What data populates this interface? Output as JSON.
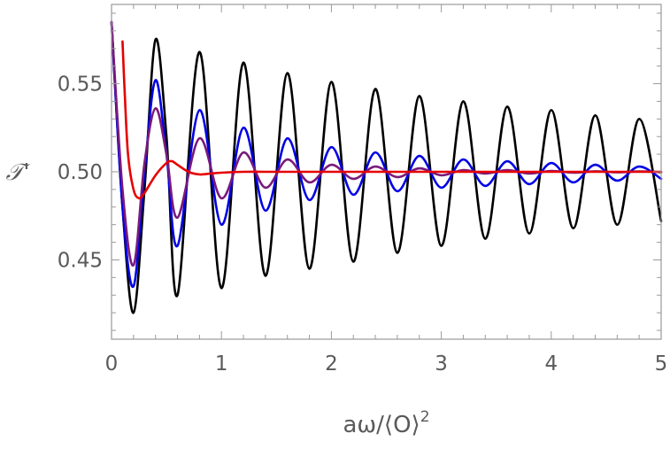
{
  "chart_data": {
    "type": "line",
    "title": "",
    "xlabel": "aω/⟨O⟩",
    "xlabel_superscript": "2",
    "ylabel": "𝒯'",
    "xlim": [
      0,
      5
    ],
    "ylim": [
      0.405,
      0.595
    ],
    "x_ticks": [
      0,
      1,
      2,
      3,
      4,
      5
    ],
    "x_tick_labels": [
      "0",
      "1",
      "2",
      "3",
      "4",
      "5"
    ],
    "y_ticks": [
      0.45,
      0.5,
      0.55
    ],
    "y_tick_labels": [
      "0.45",
      "0.50",
      "0.55"
    ],
    "grid": false,
    "legend": "none",
    "series": [
      {
        "color": "#000000",
        "x": [
          0.0,
          0.1,
          0.2,
          0.3,
          0.4,
          0.5,
          0.6,
          0.8,
          1.0,
          1.2,
          1.4,
          1.6,
          1.8,
          2.0,
          2.2,
          2.4,
          2.6,
          2.8,
          3.0,
          3.2,
          3.4,
          3.6,
          3.8,
          4.0,
          4.2,
          4.4,
          4.6,
          4.8,
          5.0
        ],
        "y": [
          0.585,
          0.48,
          0.42,
          0.49,
          0.575,
          0.52,
          0.43,
          0.568,
          0.434,
          0.562,
          0.441,
          0.556,
          0.445,
          0.551,
          0.449,
          0.547,
          0.454,
          0.543,
          0.458,
          0.54,
          0.462,
          0.537,
          0.465,
          0.535,
          0.468,
          0.532,
          0.47,
          0.53,
          0.472
        ]
      },
      {
        "color": "#0000e6",
        "x": [
          0.0,
          0.1,
          0.2,
          0.3,
          0.4,
          0.5,
          0.6,
          0.8,
          1.0,
          1.2,
          1.4,
          1.6,
          1.8,
          2.0,
          2.2,
          2.4,
          2.6,
          2.8,
          3.0,
          3.2,
          3.4,
          3.6,
          3.8,
          4.0,
          4.2,
          4.4,
          4.6,
          4.8,
          5.0
        ],
        "y": [
          0.585,
          0.48,
          0.435,
          0.5,
          0.552,
          0.51,
          0.458,
          0.535,
          0.47,
          0.525,
          0.478,
          0.519,
          0.484,
          0.514,
          0.487,
          0.511,
          0.489,
          0.509,
          0.491,
          0.507,
          0.492,
          0.506,
          0.493,
          0.505,
          0.494,
          0.504,
          0.495,
          0.503,
          0.496
        ]
      },
      {
        "color": "#7a1a7a",
        "x": [
          0.0,
          0.1,
          0.2,
          0.3,
          0.4,
          0.5,
          0.6,
          0.8,
          1.0,
          1.2,
          1.4,
          1.6,
          1.8,
          2.0,
          2.2,
          2.4,
          2.6,
          2.8,
          3.0,
          3.2,
          3.4,
          3.6,
          3.8,
          4.0,
          4.2,
          4.4,
          4.6,
          4.8,
          5.0
        ],
        "y": [
          0.585,
          0.49,
          0.447,
          0.505,
          0.536,
          0.51,
          0.474,
          0.519,
          0.485,
          0.511,
          0.491,
          0.507,
          0.494,
          0.504,
          0.496,
          0.503,
          0.497,
          0.502,
          0.498,
          0.501,
          0.499,
          0.501,
          0.499,
          0.5005,
          0.4995,
          0.5003,
          0.4997,
          0.5002,
          0.4998
        ]
      },
      {
        "color": "#e60000",
        "x": [
          0.1,
          0.12,
          0.15,
          0.2,
          0.25,
          0.3,
          0.4,
          0.5,
          0.55,
          0.6,
          0.7,
          0.8,
          0.9,
          1.0,
          1.2,
          1.4,
          1.6,
          2.0,
          3.0,
          4.0,
          5.0
        ],
        "y": [
          0.574,
          0.545,
          0.51,
          0.49,
          0.485,
          0.488,
          0.498,
          0.505,
          0.506,
          0.504,
          0.5,
          0.4985,
          0.499,
          0.4995,
          0.5,
          0.5,
          0.5,
          0.5,
          0.5,
          0.5,
          0.5
        ]
      }
    ]
  }
}
